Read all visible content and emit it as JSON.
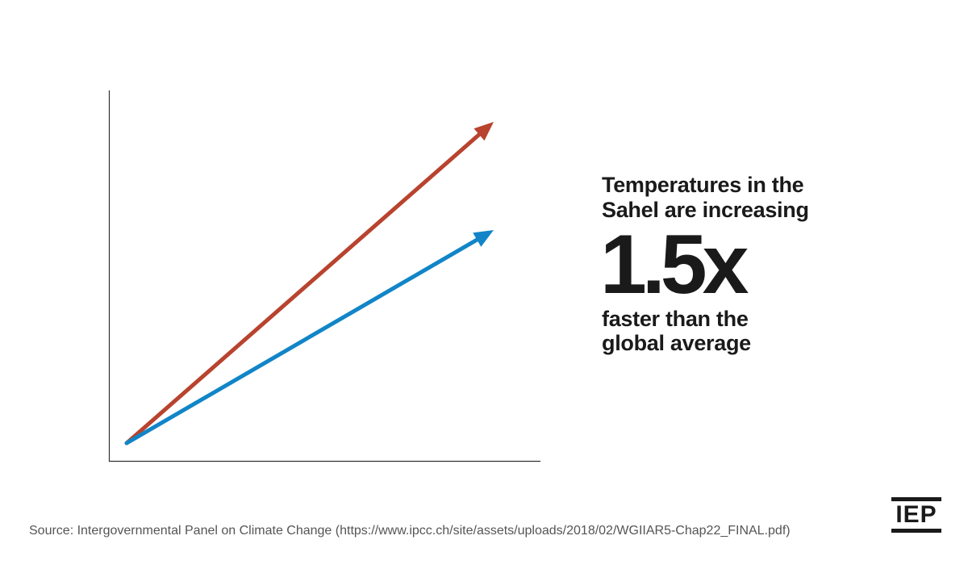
{
  "chart_data": {
    "type": "line",
    "title": "",
    "xlabel": "",
    "ylabel": "",
    "xlim": [
      0,
      1
    ],
    "ylim": [
      0,
      1
    ],
    "grid": false,
    "series": [
      {
        "x": [
          0,
          1
        ],
        "y": [
          0,
          0.95
        ],
        "color": "#b8432e"
      },
      {
        "x": [
          0,
          1
        ],
        "y": [
          0,
          0.63
        ],
        "color": "#1185c7"
      }
    ]
  },
  "headline": {
    "line1": "Temperatures in the",
    "line2": "Sahel are increasing",
    "big_number": "1.5x",
    "line3": "faster than the",
    "line4": "global average"
  },
  "source": "Source: Intergovernmental Panel on Climate Change (https://www.ipcc.ch/site/assets/uploads/2018/02/WGIIAR5-Chap22_FINAL.pdf)",
  "logo": {
    "text": "IEP"
  },
  "colors": {
    "text": "#1a1a1a",
    "axis": "#333333",
    "source_text": "#555555"
  }
}
